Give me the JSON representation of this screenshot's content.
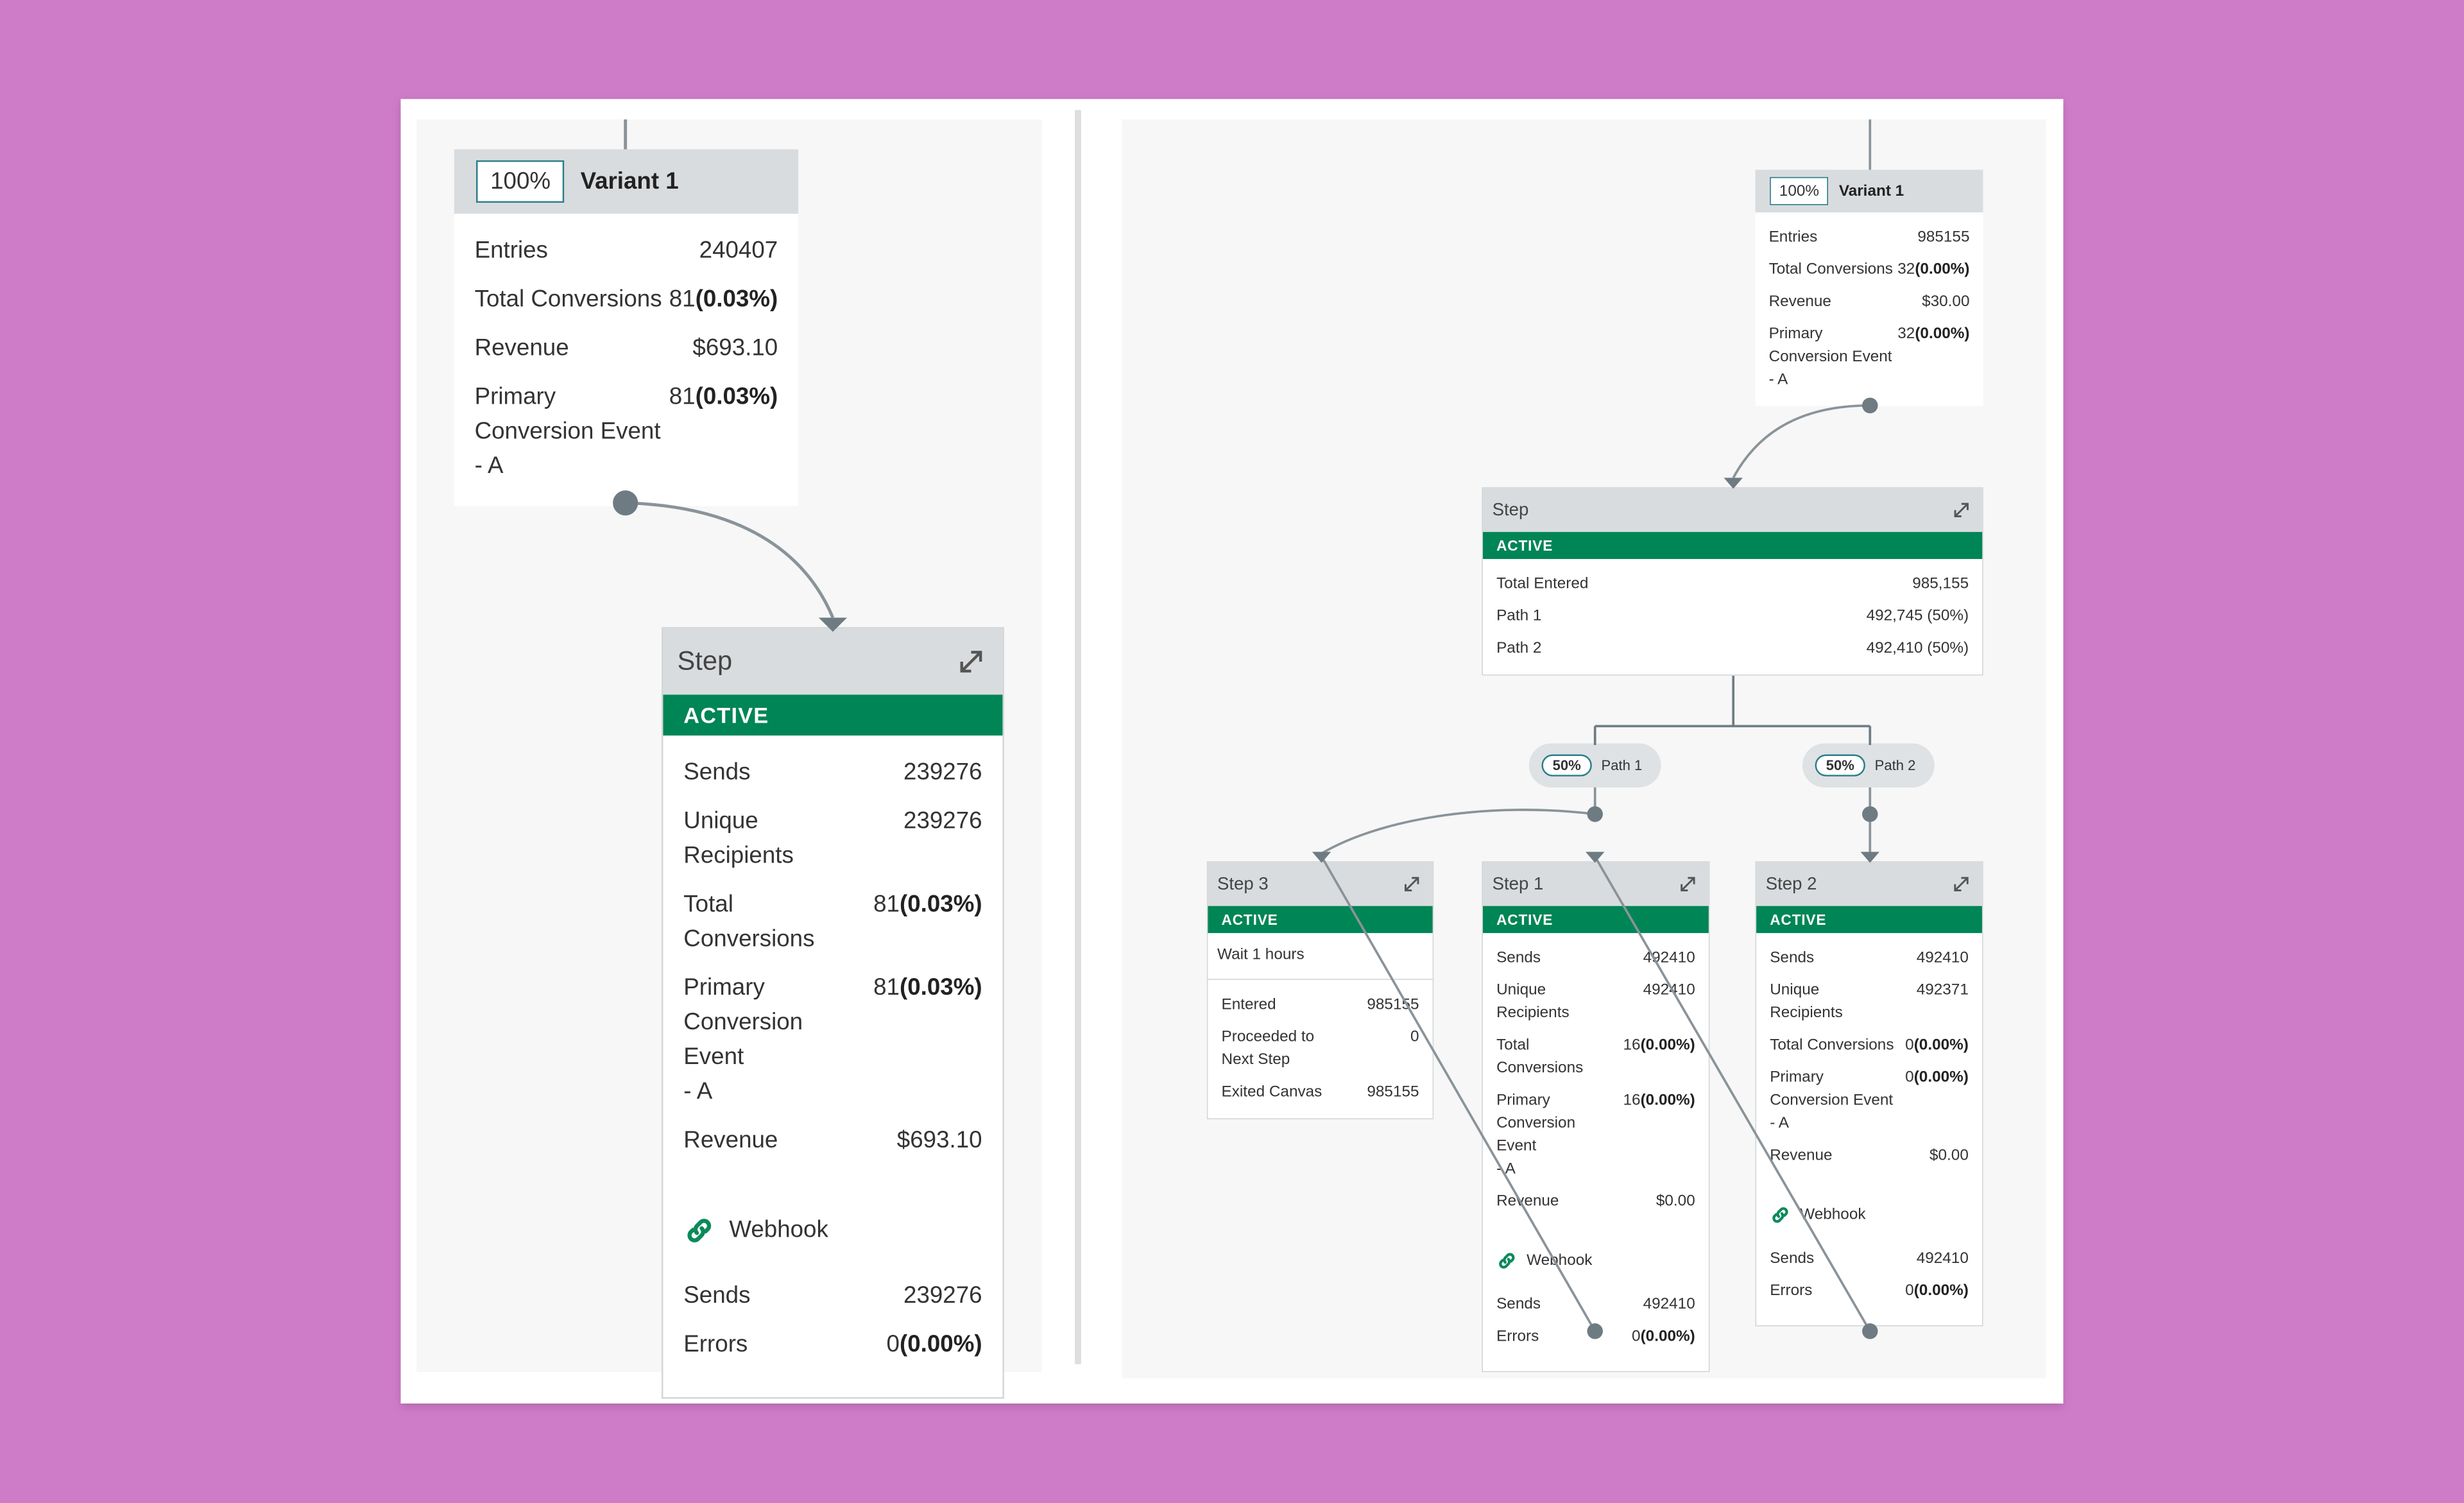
{
  "left": {
    "variant": {
      "percent": "100%",
      "name": "Variant 1",
      "rows": [
        {
          "label": "Entries",
          "value": "240407"
        },
        {
          "label": "Total Conversions",
          "value": "81",
          "share": "(0.03%)"
        },
        {
          "label": "Revenue",
          "value": "$693.10"
        },
        {
          "label": "Primary\nConversion Event\n- A",
          "value": "81",
          "share": "(0.03%)"
        }
      ]
    },
    "step": {
      "title": "Step",
      "status": "ACTIVE",
      "rows": [
        {
          "label": "Sends",
          "value": "239276"
        },
        {
          "label": "Unique\nRecipients",
          "value": "239276"
        },
        {
          "label": "Total Conversions",
          "value": "81",
          "share": "(0.03%)"
        },
        {
          "label": "Primary\nConversion Event\n- A",
          "value": "81",
          "share": "(0.03%)"
        },
        {
          "label": "Revenue",
          "value": "$693.10"
        }
      ],
      "channel": {
        "name": "Webhook",
        "rows": [
          {
            "label": "Sends",
            "value": "239276"
          },
          {
            "label": "Errors",
            "value": "0",
            "share": "(0.00%)"
          }
        ]
      }
    }
  },
  "right": {
    "variant": {
      "percent": "100%",
      "name": "Variant 1",
      "rows": [
        {
          "label": "Entries",
          "value": "985155"
        },
        {
          "label": "Total Conversions",
          "value": "32",
          "share": "(0.00%)"
        },
        {
          "label": "Revenue",
          "value": "$30.00"
        },
        {
          "label": "Primary\nConversion Event\n- A",
          "value": "32",
          "share": "(0.00%)"
        }
      ]
    },
    "split": {
      "title": "Step",
      "status": "ACTIVE",
      "rows": [
        {
          "label": "Total Entered",
          "value": "985,155"
        },
        {
          "label": "Path 1",
          "value": "492,745 (50%)"
        },
        {
          "label": "Path 2",
          "value": "492,410 (50%)"
        }
      ]
    },
    "paths": [
      {
        "percent": "50%",
        "name": "Path 1"
      },
      {
        "percent": "50%",
        "name": "Path 2"
      }
    ],
    "steps": [
      {
        "title": "Step 3",
        "status": "ACTIVE",
        "note": "Wait 1 hours",
        "rows": [
          {
            "label": "Entered",
            "value": "985155"
          },
          {
            "label": "Proceeded to\nNext Step",
            "value": "0"
          },
          {
            "label": "Exited Canvas",
            "value": "985155"
          }
        ]
      },
      {
        "title": "Step 1",
        "status": "ACTIVE",
        "rows": [
          {
            "label": "Sends",
            "value": "492410"
          },
          {
            "label": "Unique\nRecipients",
            "value": "492410"
          },
          {
            "label": "Total Conversions",
            "value": "16",
            "share": "(0.00%)"
          },
          {
            "label": "Primary\nConversion Event\n- A",
            "value": "16",
            "share": "(0.00%)"
          },
          {
            "label": "Revenue",
            "value": "$0.00"
          }
        ],
        "channel": {
          "name": "Webhook",
          "rows": [
            {
              "label": "Sends",
              "value": "492410"
            },
            {
              "label": "Errors",
              "value": "0",
              "share": "(0.00%)"
            }
          ]
        }
      },
      {
        "title": "Step 2",
        "status": "ACTIVE",
        "rows": [
          {
            "label": "Sends",
            "value": "492410"
          },
          {
            "label": "Unique\nRecipients",
            "value": "492371"
          },
          {
            "label": "Total Conversions",
            "value": "0",
            "share": "(0.00%)"
          },
          {
            "label": "Primary\nConversion Event\n- A",
            "value": "0",
            "share": "(0.00%)"
          },
          {
            "label": "Revenue",
            "value": "$0.00"
          }
        ],
        "channel": {
          "name": "Webhook",
          "rows": [
            {
              "label": "Sends",
              "value": "492410"
            },
            {
              "label": "Errors",
              "value": "0",
              "share": "(0.00%)"
            }
          ]
        }
      }
    ]
  }
}
